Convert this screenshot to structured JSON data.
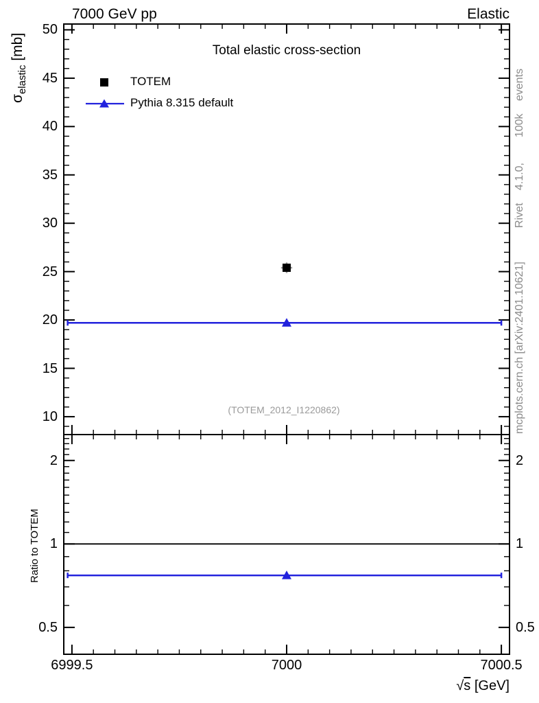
{
  "header": {
    "left": "7000 GeV pp",
    "right": "Elastic"
  },
  "panel_title": "Total elastic cross-section",
  "legend": [
    {
      "label": "TOTEM",
      "marker": "square",
      "color": "#000000",
      "line": false
    },
    {
      "label": "Pythia 8.315 default",
      "marker": "triangle",
      "color": "#2222dd",
      "line": true
    }
  ],
  "watermark": "(TOTEM_2012_I1220862)",
  "side_notes": {
    "top": "Rivet 4.1.0,  100k events",
    "bottom": "mcplots.cern.ch [arXiv:2401.10621]"
  },
  "axes": {
    "x_label": {
      "sqrt": "√",
      "arg": "s",
      "unit": " [GeV]"
    },
    "y_label_main": {
      "sigma": "σ",
      "sub": "elastic",
      "unit": " [mb]"
    },
    "y_label_ratio": "Ratio to TOTEM"
  },
  "chart_data": [
    {
      "type": "scatter",
      "panel": "main",
      "title": "Total elastic cross-section",
      "xlabel": "sqrt(s) [GeV]",
      "ylabel": "sigma_elastic [mb]",
      "xlim": [
        6999.481,
        7000.519
      ],
      "ylim": [
        8.15,
        50.6
      ],
      "yscale": "linear",
      "x_major_ticks": [
        6999.5,
        7000,
        7000.5
      ],
      "x_minor_step": 0.05,
      "y_major_ticks": [
        10,
        15,
        20,
        25,
        30,
        35,
        40,
        45,
        50
      ],
      "y_minor_step": 1,
      "grid": false,
      "legend_position": "top-left",
      "series": [
        {
          "name": "TOTEM",
          "marker": "square",
          "color": "#000000",
          "x": [
            7000
          ],
          "y": [
            25.4
          ],
          "yerr": [
            0.55
          ],
          "xerr": [
            0.013
          ]
        },
        {
          "name": "Pythia 8.315 default",
          "marker": "triangle",
          "color": "#2222dd",
          "x": [
            7000
          ],
          "y": [
            19.7
          ],
          "bin": [
            6999.49,
            7000.5
          ]
        }
      ]
    },
    {
      "type": "line",
      "panel": "ratio",
      "title": "Ratio to TOTEM",
      "xlim": [
        6999.481,
        7000.519
      ],
      "ylim": [
        0.4,
        2.48
      ],
      "yscale": "log",
      "x_major_ticks": [
        6999.5,
        7000,
        7000.5
      ],
      "x_minor_step": 0.05,
      "y_major_ticks": [
        0.5,
        1,
        2
      ],
      "y_minor_ticks": [
        0.4,
        0.6,
        0.7,
        0.8,
        0.9,
        1.1,
        1.2,
        1.3,
        1.4,
        1.5,
        1.6,
        1.7,
        1.8,
        1.9,
        2.1,
        2.2,
        2.3,
        2.4
      ],
      "series": [
        {
          "name": "TOTEM",
          "color": "#000000",
          "y": [
            1.0
          ],
          "reference_line": true
        },
        {
          "name": "Pythia 8.315 default",
          "color": "#2222dd",
          "marker": "triangle",
          "x": [
            7000
          ],
          "y": [
            0.77
          ],
          "bin": [
            6999.49,
            7000.5
          ]
        }
      ]
    }
  ]
}
